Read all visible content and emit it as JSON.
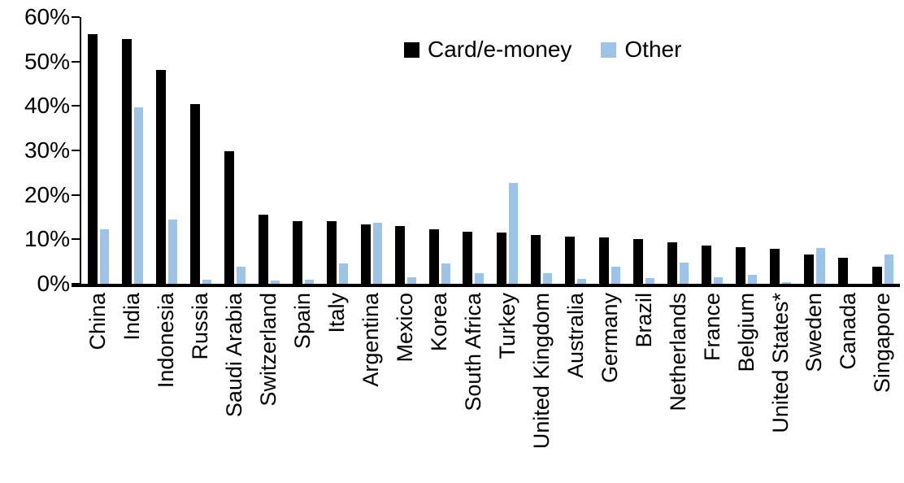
{
  "chart_data": {
    "type": "bar",
    "title": "",
    "xlabel": "",
    "ylabel": "",
    "ylim": [
      0,
      60
    ],
    "ytick_step": 10,
    "yticks": [
      "0%",
      "10%",
      "20%",
      "30%",
      "40%",
      "50%",
      "60%"
    ],
    "grid": false,
    "legend_position": "top-center",
    "categories": [
      "China",
      "India",
      "Indonesia",
      "Russia",
      "Saudi Arabia",
      "Switzerland",
      "Spain",
      "Italy",
      "Argentina",
      "Mexico",
      "Korea",
      "South Africa",
      "Turkey",
      "United Kingdom",
      "Australia",
      "Germany",
      "Brazil",
      "Netherlands",
      "France",
      "Belgium",
      "United States*",
      "Sweden",
      "Canada",
      "Singapore"
    ],
    "series": [
      {
        "name": "Card/e-money",
        "color": "#000000",
        "values": [
          56.2,
          55.0,
          48.2,
          40.5,
          29.9,
          15.5,
          14.1,
          14.0,
          13.3,
          12.9,
          12.2,
          11.8,
          11.6,
          11.0,
          10.7,
          10.5,
          10.0,
          9.3,
          8.6,
          8.2,
          7.9,
          6.5,
          5.9,
          3.8
        ]
      },
      {
        "name": "Other",
        "color": "#9DC3E6",
        "values": [
          12.3,
          39.7,
          14.5,
          1.0,
          3.9,
          0.8,
          1.0,
          4.6,
          13.8,
          1.4,
          4.6,
          2.4,
          22.6,
          2.4,
          1.1,
          3.9,
          1.2,
          4.8,
          1.5,
          2.0,
          0.3,
          8.1,
          0.0,
          6.6
        ]
      }
    ]
  }
}
